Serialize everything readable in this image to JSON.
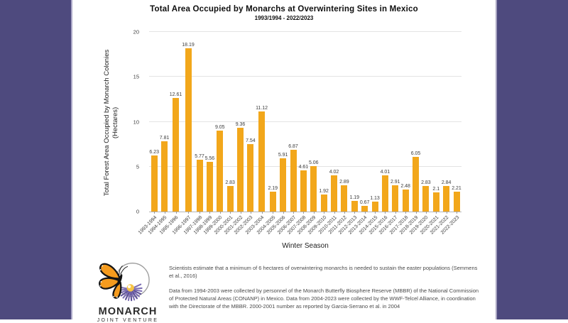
{
  "theme": {
    "border_purple": "#4E4A7E",
    "border_separator": "#ABA7C8",
    "bar_orange": "#F2A71B",
    "gridline_gray": "#e3e3e3"
  },
  "chart_data": {
    "type": "bar",
    "title": "Total Area Occupied by Monarchs at Overwintering Sites in Mexico",
    "subtitle": "1993/1994 - 2022/2023",
    "xlabel": "Winter Season",
    "ylabel": "Total Forest Area Occupied by Monarch Colonies",
    "ylabel_unit": "(Hectares)",
    "ylim": [
      0,
      20
    ],
    "yticks": [
      0,
      5,
      10,
      15,
      20
    ],
    "grid": "horizontal",
    "legend": "none",
    "bar_color": "#F2A71B",
    "categories": [
      "1993-1994",
      "1994-1995",
      "1995-1996",
      "1996-1997",
      "1997-1998",
      "1998-1999",
      "1999-2000",
      "2000-2001",
      "2001-2002",
      "2002-2003",
      "2003-2004",
      "2004-2005",
      "2005-2006",
      "2006-2007",
      "2007-2008",
      "2008-2009",
      "2009-2010",
      "2010-2011",
      "2011-2012",
      "2012-2013",
      "2013-2014",
      "2014-2015",
      "2015-2016",
      "2016-2017",
      "2017-2018",
      "2018-2019",
      "2019-2020",
      "2020-2021",
      "2021-2022",
      "2022-2023"
    ],
    "values": [
      6.23,
      7.81,
      12.61,
      18.19,
      5.77,
      5.56,
      9.05,
      2.83,
      9.36,
      7.54,
      11.12,
      2.19,
      5.91,
      6.87,
      4.61,
      5.06,
      1.92,
      4.02,
      2.89,
      1.19,
      0.67,
      1.13,
      4.01,
      2.91,
      2.48,
      6.05,
      2.83,
      2.1,
      2.84,
      2.21
    ]
  },
  "footer": {
    "logo": {
      "word": "MONARCH",
      "subword": "JOINT VENTURE"
    },
    "note1": "Scientists estimate that a minimum of 6 hectares of overwintering monarchs is needed to sustain the easter populations (Semmens et al., 2016)",
    "note2": "Data from  1994-2003 were collected by personnel of the Monarch Butterfly Biosphere Reserve (MBBR) of the National Commission of Protected Natural Areas (CONANP) in Mexico. Data from 2004-2023 were collected by the WWF-Telcel Alliance, in coordination with the Directorate of the MBBR. 2000-2001 number as reported by Garcia-Serrano et al. in 2004"
  }
}
